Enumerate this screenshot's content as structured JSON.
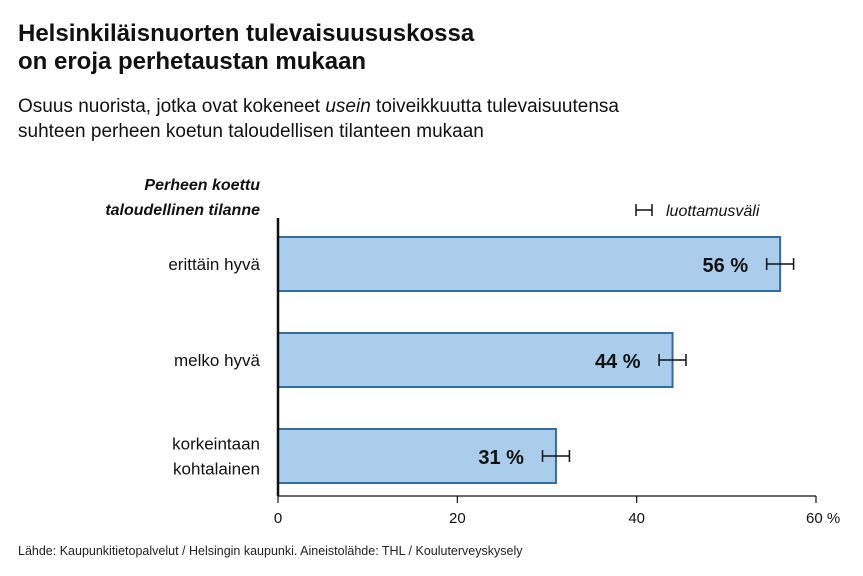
{
  "header": {
    "title_line1": "Helsinkiläisnuorten tulevaisuususkossa",
    "title_line2": "on eroja perhetaustan mukaan",
    "subtitle_part1": "Osuus nuorista, jotka ovat kokeneet ",
    "subtitle_emphasis": "usein",
    "subtitle_part2": " toiveikkuutta tulevaisuutensa",
    "subtitle_line2": "suhteen perheen koetun taloudellisen tilanteen mukaan"
  },
  "footer": {
    "source": "Lähde: Kaupunkitietopalvelut / Helsingin kaupunki. Aineistolähde: THL / Kouluterveyskysely"
  },
  "chart_data": {
    "type": "bar",
    "orientation": "horizontal",
    "ylabel_line1": "Perheen koettu",
    "ylabel_line2": "taloudellinen tilanne",
    "categories": [
      [
        "erittäin hyvä"
      ],
      [
        "melko hyvä"
      ],
      [
        "korkeintaan",
        "kohtalainen"
      ]
    ],
    "values": [
      56,
      44,
      31
    ],
    "value_labels": [
      "56 %",
      "44 %",
      "31 %"
    ],
    "error_low": [
      54.5,
      42.5,
      29.5
    ],
    "error_high": [
      57.5,
      45.5,
      32.5
    ],
    "xlim": [
      0,
      60
    ],
    "xticks": [
      0,
      20,
      40,
      60
    ],
    "xtick_labels": [
      "0",
      "20",
      "40",
      "60 %"
    ],
    "legend": "luottamusväli",
    "legend_position": "top-right",
    "colors": {
      "bar_fill": "#a9cdeb",
      "bar_stroke": "#2f6ea3",
      "axis": "#111111",
      "error_bar": "#111111"
    }
  }
}
